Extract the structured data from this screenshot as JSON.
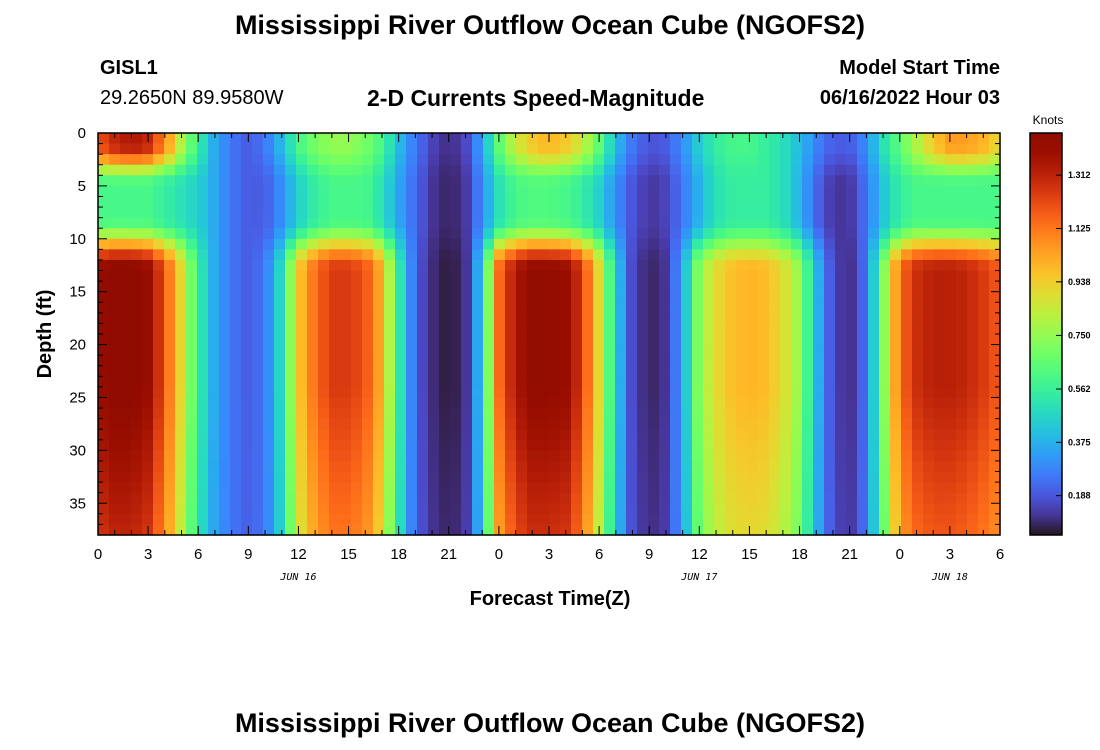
{
  "header": {
    "title": "Mississippi River Outflow Ocean Cube (NGOFS2)",
    "station_id": "GISL1",
    "station_coords": "29.2650N  89.9580W",
    "subtitle": "2-D Currents Speed-Magnitude",
    "model_start_label": "Model Start Time",
    "model_start_value": "06/16/2022 Hour 03"
  },
  "footer": {
    "title_repeat": "Mississippi River Outflow Ocean Cube (NGOFS2)"
  },
  "chart_data": {
    "type": "heatmap",
    "title": "2-D Currents Speed-Magnitude",
    "xlabel": "Forecast Time(Z)",
    "ylabel": "Depth (ft)",
    "x_range_hours": [
      0,
      54
    ],
    "x_tick_labels": [
      "0",
      "3",
      "6",
      "9",
      "12",
      "15",
      "18",
      "21",
      "0",
      "3",
      "6",
      "9",
      "12",
      "15",
      "18",
      "21",
      "0",
      "3",
      "6"
    ],
    "date_labels": [
      {
        "text": "JUN 16",
        "at_hour": 12
      },
      {
        "text": "JUN 17",
        "at_hour": 36
      },
      {
        "text": "JUN 18",
        "at_hour": 51
      }
    ],
    "y_range_ft": [
      0,
      38
    ],
    "y_tick_labels": [
      "0",
      "5",
      "10",
      "15",
      "20",
      "25",
      "30",
      "35"
    ],
    "y_reversed": true,
    "colorbar": {
      "title": "Knots",
      "range": [
        0.05,
        1.46
      ],
      "tick_labels": [
        "0.188",
        "0.375",
        "0.562",
        "0.750",
        "0.938",
        "1.125",
        "1.312"
      ],
      "colormap": "turbo"
    },
    "columns_hours": [
      0,
      1,
      2,
      3,
      4,
      5,
      6,
      7,
      8,
      9,
      10,
      11,
      12,
      13,
      14,
      15,
      16,
      17,
      18,
      19,
      20,
      21,
      22,
      23,
      24,
      25,
      26,
      27,
      28,
      29,
      30,
      31,
      32,
      33,
      34,
      35,
      36,
      37,
      38,
      39,
      40,
      41,
      42,
      43,
      44,
      45,
      46,
      47,
      48,
      49,
      50,
      51,
      52,
      53,
      54
    ],
    "near_surface_speed_knots": [
      1.2,
      1.3,
      1.35,
      1.3,
      1.1,
      0.8,
      0.55,
      0.35,
      0.25,
      0.2,
      0.25,
      0.4,
      0.6,
      0.7,
      0.75,
      0.75,
      0.7,
      0.6,
      0.4,
      0.25,
      0.15,
      0.1,
      0.15,
      0.35,
      0.65,
      0.85,
      0.95,
      1.0,
      0.95,
      0.85,
      0.65,
      0.4,
      0.25,
      0.18,
      0.2,
      0.3,
      0.45,
      0.55,
      0.6,
      0.6,
      0.55,
      0.5,
      0.4,
      0.28,
      0.2,
      0.2,
      0.3,
      0.5,
      0.65,
      0.8,
      0.95,
      1.05,
      1.05,
      1.0,
      0.9
    ],
    "mid_layer_speed_knots": [
      0.6,
      0.6,
      0.6,
      0.6,
      0.55,
      0.5,
      0.45,
      0.35,
      0.25,
      0.2,
      0.2,
      0.3,
      0.45,
      0.55,
      0.6,
      0.6,
      0.6,
      0.5,
      0.35,
      0.22,
      0.12,
      0.08,
      0.12,
      0.3,
      0.5,
      0.6,
      0.62,
      0.62,
      0.6,
      0.55,
      0.45,
      0.3,
      0.18,
      0.12,
      0.15,
      0.25,
      0.38,
      0.5,
      0.55,
      0.55,
      0.55,
      0.5,
      0.38,
      0.22,
      0.12,
      0.12,
      0.25,
      0.42,
      0.55,
      0.6,
      0.6,
      0.6,
      0.6,
      0.6,
      0.6
    ],
    "deep_layer_speed_knots": [
      1.4,
      1.45,
      1.45,
      1.4,
      1.2,
      0.9,
      0.55,
      0.35,
      0.25,
      0.2,
      0.25,
      0.5,
      0.95,
      1.15,
      1.25,
      1.25,
      1.2,
      1.0,
      0.55,
      0.2,
      0.1,
      0.06,
      0.1,
      0.45,
      1.15,
      1.35,
      1.42,
      1.42,
      1.4,
      1.25,
      0.9,
      0.45,
      0.15,
      0.08,
      0.12,
      0.35,
      0.75,
      0.9,
      0.98,
      1.0,
      0.98,
      0.9,
      0.75,
      0.4,
      0.15,
      0.1,
      0.25,
      0.7,
      1.15,
      1.28,
      1.32,
      1.32,
      1.3,
      1.25,
      1.18
    ]
  }
}
